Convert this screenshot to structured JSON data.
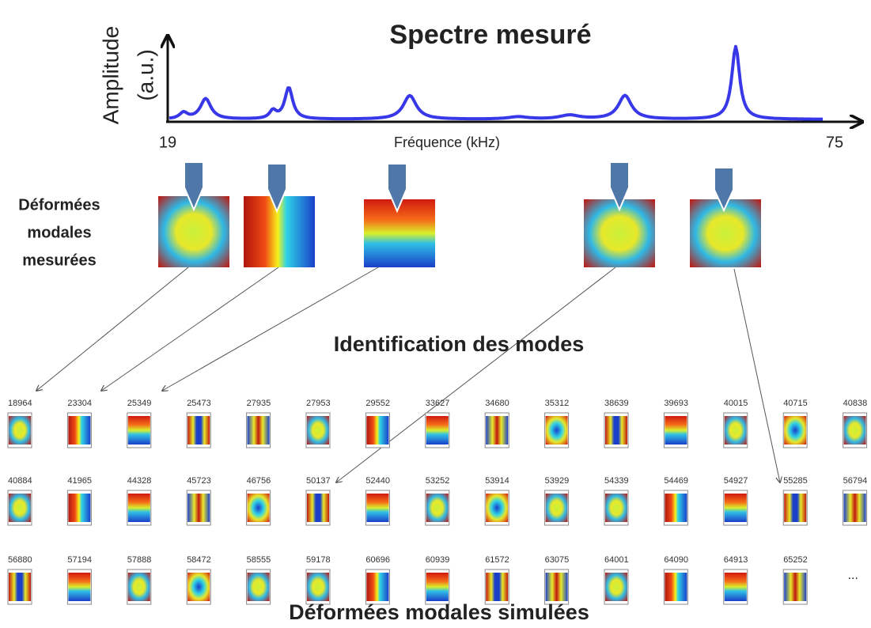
{
  "title": "Spectre mesuré",
  "y_label": [
    "Amplitude",
    "(a.u.)"
  ],
  "x_label": "Fréquence (kHz)",
  "x_start": "19",
  "x_end": "75",
  "measured_label": [
    "Déformées",
    "modales",
    "mesurées"
  ],
  "identification": "Identification des modes",
  "simulated_rows": [
    [
      18964,
      23304,
      25349,
      25473,
      27935,
      27953,
      29552,
      33627,
      34680,
      35312,
      38639,
      39693,
      40015,
      40715,
      40838
    ],
    [
      40884,
      41965,
      44328,
      45723,
      46756,
      50137,
      52440,
      53252,
      53914,
      53929,
      54339,
      54469,
      54927,
      55285,
      56794
    ],
    [
      56880,
      57194,
      57888,
      58472,
      58555,
      59178,
      60696,
      60939,
      61572,
      63075,
      64001,
      64090,
      64913,
      65252
    ]
  ],
  "ellipsis": "...",
  "simulated_title": "Déformées modales simulées"
}
